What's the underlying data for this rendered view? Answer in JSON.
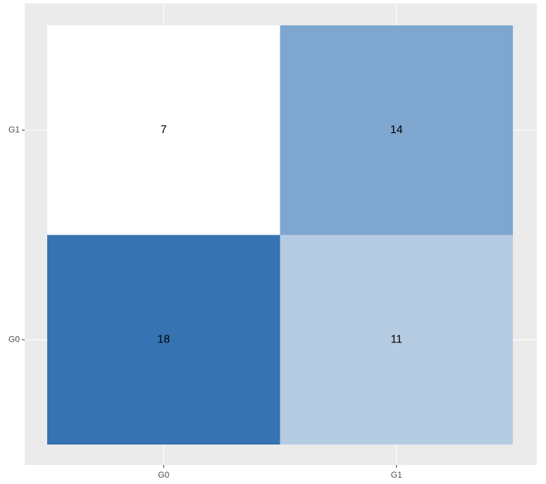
{
  "chart_data": {
    "type": "heatmap",
    "x_categories": [
      "G0",
      "G1"
    ],
    "y_categories": [
      "G0",
      "G1"
    ],
    "values": [
      [
        18,
        11
      ],
      [
        7,
        14
      ]
    ],
    "color_low": "#ffffff",
    "color_high": "#3573b3",
    "grid": true
  }
}
